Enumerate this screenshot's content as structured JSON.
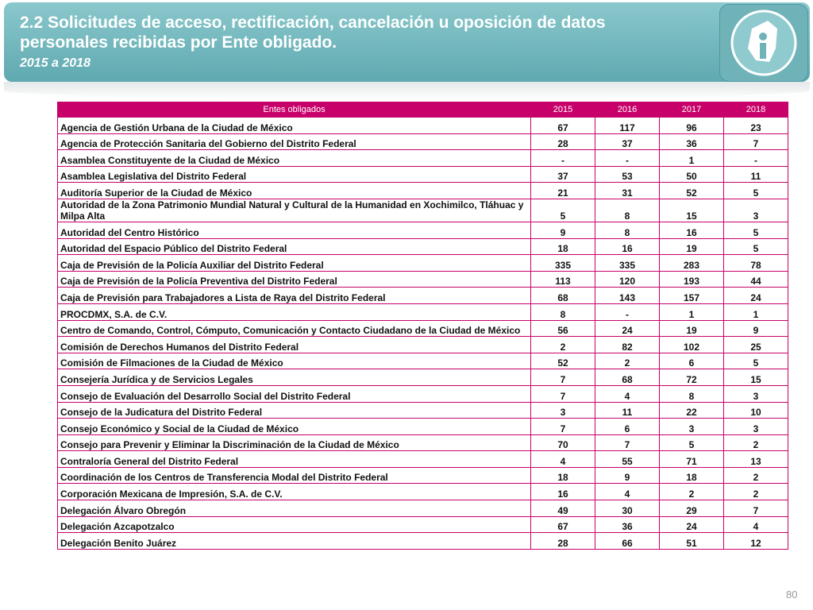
{
  "header": {
    "title_line1": "2.2 Solicitudes de acceso, rectificación, cancelación u oposición de datos",
    "title_line2": "personales recibidas por Ente obligado.",
    "subtitle": "2015 a 2018"
  },
  "table": {
    "columns": [
      "Entes obligados",
      "2015",
      "2016",
      "2017",
      "2018"
    ],
    "rows": [
      [
        "Agencia de Gestión Urbana de la Ciudad de México",
        67,
        117,
        96,
        23
      ],
      [
        "Agencia de Protección Sanitaria del Gobierno del Distrito Federal",
        28,
        37,
        36,
        7
      ],
      [
        "Asamblea Constituyente de la Ciudad de México",
        "-",
        "-",
        1,
        "-"
      ],
      [
        "Asamblea Legislativa del Distrito Federal",
        37,
        53,
        50,
        11
      ],
      [
        "Auditoría Superior de la Ciudad de México",
        21,
        31,
        52,
        5
      ],
      [
        "Autoridad de la Zona Patrimonio Mundial Natural y Cultural de la Humanidad en Xochimilco, Tláhuac y Milpa Alta",
        5,
        8,
        15,
        3
      ],
      [
        "Autoridad del Centro Histórico",
        9,
        8,
        16,
        5
      ],
      [
        "Autoridad del Espacio Público del Distrito Federal",
        18,
        16,
        19,
        5
      ],
      [
        "Caja de Previsión de la Policía Auxiliar del Distrito Federal",
        335,
        335,
        283,
        78
      ],
      [
        "Caja de Previsión de la Policía Preventiva del Distrito Federal",
        113,
        120,
        193,
        44
      ],
      [
        "Caja de Previsión para Trabajadores a Lista de Raya del Distrito Federal",
        68,
        143,
        157,
        24
      ],
      [
        "PROCDMX, S.A. de C.V.",
        8,
        "-",
        1,
        1
      ],
      [
        "Centro de Comando, Control, Cómputo, Comunicación y Contacto Ciudadano de la Ciudad de México",
        56,
        24,
        19,
        9
      ],
      [
        "Comisión de Derechos Humanos del Distrito Federal",
        2,
        82,
        102,
        25
      ],
      [
        "Comisión de Filmaciones de la Ciudad de México",
        52,
        2,
        6,
        5
      ],
      [
        "Consejería Jurídica y de Servicios Legales",
        7,
        68,
        72,
        15
      ],
      [
        "Consejo de Evaluación del Desarrollo Social del Distrito Federal",
        7,
        4,
        8,
        3
      ],
      [
        "Consejo de la Judicatura del Distrito Federal",
        3,
        11,
        22,
        10
      ],
      [
        "Consejo Económico y Social de la Ciudad de México",
        7,
        6,
        3,
        3
      ],
      [
        "Consejo para Prevenir y Eliminar la Discriminación de la Ciudad de México",
        70,
        7,
        5,
        2
      ],
      [
        "Contraloría General del Distrito Federal",
        4,
        55,
        71,
        13
      ],
      [
        "Coordinación de los Centros de Transferencia Modal del Distrito Federal",
        18,
        9,
        18,
        2
      ],
      [
        "Corporación Mexicana de Impresión, S.A. de C.V.",
        16,
        4,
        2,
        2
      ],
      [
        "Delegación Álvaro Obregón",
        49,
        30,
        29,
        7
      ],
      [
        "Delegación Azcapotzalco",
        67,
        36,
        24,
        4
      ],
      [
        "Delegación Benito Juárez",
        28,
        66,
        51,
        12
      ]
    ]
  },
  "footer": {
    "page": "80"
  }
}
